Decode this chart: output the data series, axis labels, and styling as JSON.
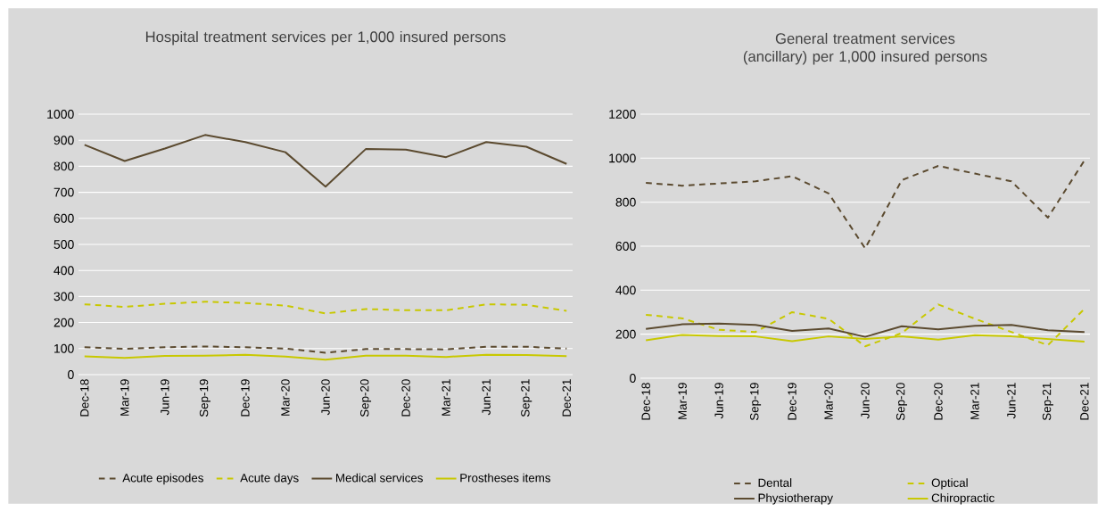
{
  "chart_data": [
    {
      "type": "line",
      "title": "Hospital treatment services per 1,000 insured persons",
      "categories": [
        "Dec-18",
        "Mar-19",
        "Jun-19",
        "Sep-19",
        "Dec-19",
        "Mar-20",
        "Jun-20",
        "Sep-20",
        "Dec-20",
        "Mar-21",
        "Jun-21",
        "Sep-21",
        "Dec-21"
      ],
      "series": [
        {
          "name": "Acute episodes",
          "color": "#5b4a2f",
          "line_style": "dashed",
          "values": [
            105,
            99,
            105,
            108,
            105,
            100,
            84,
            98,
            98,
            97,
            107,
            107,
            100
          ]
        },
        {
          "name": "Acute days",
          "color": "#c8c800",
          "line_style": "dashed",
          "values": [
            270,
            260,
            272,
            280,
            275,
            265,
            235,
            252,
            247,
            247,
            270,
            268,
            245
          ]
        },
        {
          "name": "Medical services",
          "color": "#5b4a2f",
          "line_style": "solid",
          "values": [
            882,
            820,
            868,
            920,
            893,
            854,
            722,
            866,
            864,
            835,
            893,
            875,
            809
          ]
        },
        {
          "name": "Prostheses items",
          "color": "#c8c800",
          "line_style": "solid",
          "values": [
            70,
            64,
            72,
            73,
            76,
            69,
            57,
            73,
            73,
            68,
            76,
            75,
            71
          ]
        }
      ],
      "ylim": [
        0,
        1000
      ],
      "yticks": [
        0,
        100,
        200,
        300,
        400,
        500,
        600,
        700,
        800,
        900,
        1000
      ],
      "grid": "y",
      "legend": "bottom"
    },
    {
      "type": "line",
      "title": "General treatment services (ancillary) per 1,000 insured persons",
      "categories": [
        "Dec-18",
        "Mar-19",
        "Jun-19",
        "Sep-19",
        "Dec-19",
        "Mar-20",
        "Jun-20",
        "Sep-20",
        "Dec-20",
        "Mar-21",
        "Jun-21",
        "Sep-21",
        "Dec-21"
      ],
      "series": [
        {
          "name": "Dental",
          "color": "#5b4a2f",
          "line_style": "dashed",
          "values": [
            888,
            875,
            885,
            895,
            918,
            840,
            590,
            900,
            965,
            930,
            895,
            730,
            990
          ]
        },
        {
          "name": "Optical",
          "color": "#c8c800",
          "line_style": "dashed",
          "values": [
            288,
            272,
            220,
            210,
            300,
            270,
            145,
            205,
            335,
            270,
            210,
            150,
            315
          ]
        },
        {
          "name": "Physiotherapy",
          "color": "#5b4a2f",
          "line_style": "solid",
          "values": [
            224,
            245,
            248,
            242,
            215,
            226,
            188,
            236,
            222,
            238,
            242,
            218,
            210
          ]
        },
        {
          "name": "Chiropractic",
          "color": "#c8c800",
          "line_style": "solid",
          "values": [
            172,
            197,
            192,
            190,
            168,
            190,
            178,
            190,
            175,
            196,
            190,
            178,
            166
          ]
        }
      ],
      "ylim": [
        0,
        1200
      ],
      "yticks": [
        0,
        200,
        400,
        600,
        800,
        1000,
        1200
      ],
      "grid": "y",
      "legend": "bottom"
    }
  ]
}
